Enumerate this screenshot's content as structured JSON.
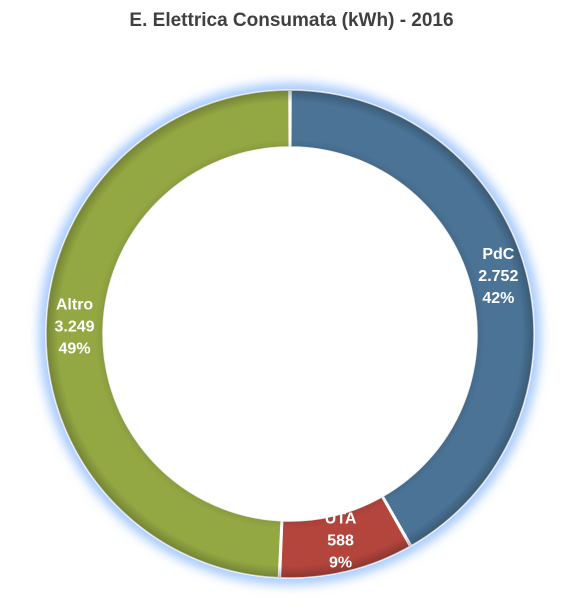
{
  "chart_data": {
    "type": "donut",
    "title": "E. Elettrica Consumata (kWh) - 2016",
    "slices": [
      {
        "name": "PdC",
        "value": 2752,
        "value_label": "2.752",
        "percent_label": "42%",
        "color": "#4a7396"
      },
      {
        "name": "UTA",
        "value": 588,
        "value_label": "588",
        "percent_label": "9%",
        "color": "#b3453d"
      },
      {
        "name": "Altro",
        "value": 3249,
        "value_label": "3.249",
        "percent_label": "49%",
        "color": "#93a843"
      }
    ],
    "start_position": "top",
    "direction": "clockwise",
    "glow_color": "#7fb2ff",
    "legend": "none"
  }
}
